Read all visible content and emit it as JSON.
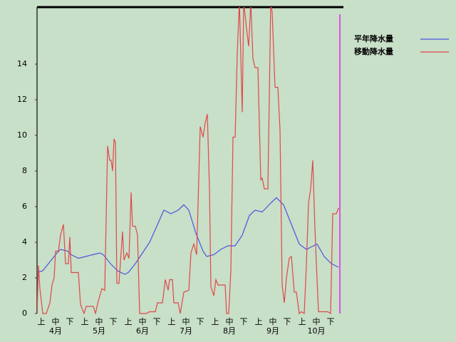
{
  "chart_data": {
    "type": "line",
    "xlim": [
      0,
      215
    ],
    "ylim": [
      0,
      17.2
    ],
    "yticks": [
      0,
      2,
      4,
      6,
      8,
      10,
      12,
      14
    ],
    "xticks": [
      {
        "value": 3,
        "label": "上"
      },
      {
        "value": 13,
        "label": "中"
      },
      {
        "value": 23,
        "label": "下"
      },
      {
        "value": 33.5,
        "label": "上"
      },
      {
        "value": 43.5,
        "label": "中"
      },
      {
        "value": 53.5,
        "label": "下"
      },
      {
        "value": 64,
        "label": "上"
      },
      {
        "value": 74,
        "label": "中"
      },
      {
        "value": 84,
        "label": "下"
      },
      {
        "value": 94.5,
        "label": "上"
      },
      {
        "value": 104.5,
        "label": "中"
      },
      {
        "value": 114.5,
        "label": "下"
      },
      {
        "value": 125,
        "label": "上"
      },
      {
        "value": 135,
        "label": "中"
      },
      {
        "value": 145,
        "label": "下"
      },
      {
        "value": 155.5,
        "label": "上"
      },
      {
        "value": 165.5,
        "label": "中"
      },
      {
        "value": 175.5,
        "label": "下"
      },
      {
        "value": 186,
        "label": "上"
      },
      {
        "value": 196,
        "label": "中"
      },
      {
        "value": 206,
        "label": "下"
      }
    ],
    "month_labels": [
      {
        "value": 13,
        "label": "4月"
      },
      {
        "value": 43.5,
        "label": "5月"
      },
      {
        "value": 74,
        "label": "6月"
      },
      {
        "value": 104.5,
        "label": "7月"
      },
      {
        "value": 135,
        "label": "8月"
      },
      {
        "value": 165.5,
        "label": "9月"
      },
      {
        "value": 196,
        "label": "10月"
      }
    ],
    "marker_x": 212.5,
    "marker_color": "#e050e0",
    "legend": "upper right",
    "series": [
      {
        "name": "平年降水量",
        "color": "#4a55e0",
        "x": [
          0,
          4,
          9,
          14,
          16.5,
          21.5,
          24,
          29,
          34,
          39,
          44,
          46.5,
          51.5,
          56.5,
          61.5,
          64,
          69,
          74,
          79,
          84,
          89,
          94,
          99,
          103,
          106.5,
          111.5,
          116.5,
          119,
          124,
          129,
          134,
          139,
          144,
          149,
          153,
          158,
          164,
          168,
          173,
          179,
          184,
          189,
          194,
          196.5,
          201.5,
          206.5,
          211.5
        ],
        "values": [
          2.3,
          2.4,
          2.9,
          3.4,
          3.6,
          3.5,
          3.3,
          3.1,
          3.2,
          3.3,
          3.4,
          3.3,
          2.8,
          2.4,
          2.2,
          2.3,
          2.8,
          3.4,
          4.0,
          4.9,
          5.8,
          5.6,
          5.8,
          6.1,
          5.8,
          4.5,
          3.5,
          3.2,
          3.3,
          3.6,
          3.8,
          3.8,
          4.4,
          5.5,
          5.8,
          5.7,
          6.2,
          6.5,
          6.1,
          4.9,
          3.9,
          3.6,
          3.8,
          3.9,
          3.2,
          2.8,
          2.6
        ]
      },
      {
        "name": "移動降水量",
        "color": "#e04848",
        "x": [
          0,
          1,
          2,
          4,
          6.5,
          9,
          10.5,
          12,
          13,
          15,
          16.5,
          18.5,
          20,
          22,
          23,
          24,
          29,
          30.5,
          33,
          34.5,
          39.5,
          41,
          43,
          45.5,
          47.5,
          49.5,
          51,
          52,
          53,
          54,
          55,
          56,
          57.5,
          60,
          61,
          63,
          64.5,
          66,
          67,
          69,
          70.5,
          72,
          76.5,
          79,
          83,
          84.5,
          88,
          90,
          92,
          93,
          95,
          96,
          99,
          100.5,
          103,
          106.5,
          108,
          110,
          112,
          114.5,
          116.5,
          118,
          119.5,
          121,
          122,
          124,
          125.5,
          127,
          132,
          133,
          134.5,
          136,
          137.5,
          139,
          140.5,
          142,
          144,
          145,
          147,
          148.5,
          150,
          151.5,
          153,
          155,
          157,
          158,
          159.5,
          162,
          164,
          165,
          167,
          169,
          170.5,
          172,
          173.5,
          175,
          177,
          178.5,
          180.5,
          182,
          184,
          185.5,
          187.5,
          189,
          190.5,
          192,
          193.5,
          195,
          196,
          197.5,
          204,
          206,
          207.5,
          210,
          211.5,
          212.5
        ],
        "values": [
          0,
          2.7,
          1.4,
          0,
          0,
          0.6,
          1.6,
          2.0,
          3.5,
          3.5,
          4.4,
          5.0,
          2.8,
          2.8,
          4.3,
          2.3,
          2.3,
          0.5,
          0,
          0.4,
          0.4,
          0,
          0.7,
          1.4,
          1.3,
          9.4,
          8.6,
          8.6,
          8.0,
          9.8,
          9.6,
          1.7,
          1.7,
          4.6,
          3.0,
          3.4,
          3.1,
          6.8,
          4.9,
          4.9,
          4.4,
          0,
          0,
          0.1,
          0.1,
          0.6,
          0.6,
          1.9,
          1.3,
          1.9,
          1.9,
          0.6,
          0.6,
          0,
          1.2,
          1.3,
          3.4,
          3.9,
          3.3,
          10.5,
          9.9,
          10.7,
          11.2,
          7.0,
          1.5,
          1.0,
          1.9,
          1.6,
          1.6,
          0,
          0,
          2.4,
          9.9,
          9.9,
          14.6,
          17.5,
          11.3,
          17.5,
          16.0,
          15.0,
          17.5,
          14.3,
          13.8,
          13.8,
          7.5,
          7.6,
          7.0,
          7.0,
          17.5,
          16.9,
          12.7,
          12.7,
          10.3,
          1.6,
          0.6,
          2.0,
          3.1,
          3.2,
          1.2,
          1.2,
          0,
          0.1,
          0,
          2.7,
          6.2,
          7.0,
          8.6,
          4.8,
          2.8,
          0.1,
          0.1,
          0,
          5.6,
          5.6,
          5.9,
          5.9
        ]
      }
    ]
  }
}
